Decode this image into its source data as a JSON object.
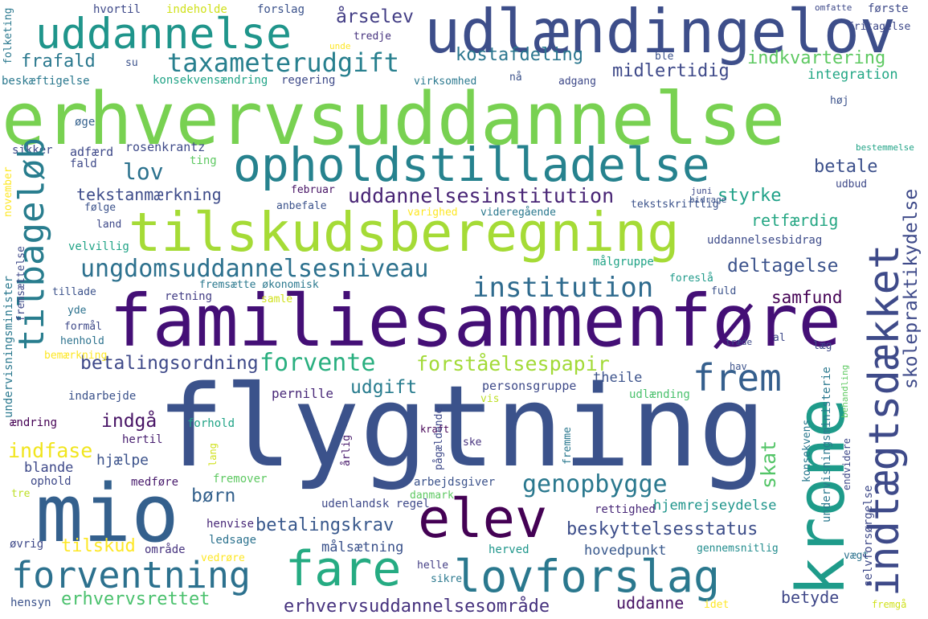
{
  "words": [
    {
      "t": "erhvervsuddannelse",
      "c": "#78d151"
    },
    {
      "t": "flygtning",
      "c": "#3b528b"
    },
    {
      "t": "familiesammenføre",
      "c": "#440f76"
    },
    {
      "t": "mio",
      "c": "#34608d"
    },
    {
      "t": "udlændingelov",
      "c": "#3d4e8a"
    },
    {
      "t": "tilskudsberegning",
      "c": "#a5db36"
    },
    {
      "t": "opholdstilladelse",
      "c": "#26828e"
    },
    {
      "t": "uddannelse",
      "c": "#1f958b"
    },
    {
      "t": "elev",
      "c": "#440154"
    },
    {
      "t": "krone",
      "c": "#1e9b8a"
    },
    {
      "t": "fare",
      "c": "#25ab82"
    },
    {
      "t": "lovforslag",
      "c": "#2a788e"
    },
    {
      "t": "indtægtsdækket",
      "c": "#3e4a89"
    },
    {
      "t": "forventning",
      "c": "#2c718e"
    },
    {
      "t": "frem",
      "c": "#355f8d"
    },
    {
      "t": "tilbageløb",
      "c": "#287d8e"
    },
    {
      "t": "taxameterudgift",
      "c": "#277f8e"
    },
    {
      "t": "ungdomsuddannelsesniveau",
      "c": "#2d718e"
    },
    {
      "t": "institution",
      "c": "#2f6b8e"
    },
    {
      "t": "uddannelsesinstitution",
      "c": "#482475"
    },
    {
      "t": "forvente",
      "c": "#29af7f"
    },
    {
      "t": "forståelsespapir",
      "c": "#a2da37"
    },
    {
      "t": "genopbygge",
      "c": "#2a788e"
    },
    {
      "t": "betalingsordning",
      "c": "#3e4989"
    },
    {
      "t": "erhvervsrettet",
      "c": "#4ac16d"
    },
    {
      "t": "erhvervsuddannelsesområde",
      "c": "#46327e"
    },
    {
      "t": "beskyttelsesstatus",
      "c": "#3d4e8a"
    },
    {
      "t": "betalingskrav",
      "c": "#38588c"
    },
    {
      "t": "skolepraktikydelse",
      "c": "#3e4a89"
    },
    {
      "t": "tekstanmærkning",
      "c": "#3e4c8a"
    },
    {
      "t": "deltagelse",
      "c": "#3b528b"
    },
    {
      "t": "samfund",
      "c": "#440154"
    },
    {
      "t": "retfærdig",
      "c": "#26a784"
    },
    {
      "t": "styrke",
      "c": "#1fa188"
    },
    {
      "t": "betale",
      "c": "#3c508b"
    },
    {
      "t": "midlertidig",
      "c": "#3e4989"
    },
    {
      "t": "kostafdeling",
      "c": "#2a768e"
    },
    {
      "t": "indkvartering",
      "c": "#5ec962"
    },
    {
      "t": "integration",
      "c": "#22a785"
    },
    {
      "t": "frafald",
      "c": "#2a788e"
    },
    {
      "t": "lov",
      "c": "#2c728e"
    },
    {
      "t": "årselev",
      "c": "#433e85"
    },
    {
      "t": "udgift",
      "c": "#287c8e"
    },
    {
      "t": "indgå",
      "c": "#471365"
    },
    {
      "t": "indfase",
      "c": "#f1e51d"
    },
    {
      "t": "tilskud",
      "c": "#fde725"
    },
    {
      "t": "børn",
      "c": "#34618d"
    },
    {
      "t": "skat",
      "c": "#54c568"
    },
    {
      "t": "betyde",
      "c": "#3f4788"
    },
    {
      "t": "uddanne",
      "c": "#471365"
    },
    {
      "t": "udlænding",
      "c": "#4ac16d"
    },
    {
      "t": "hjemrejseydelse",
      "c": "#1f958b"
    },
    {
      "t": "hovedpunkt",
      "c": "#38588c"
    },
    {
      "t": "målsætning",
      "c": "#3b528b"
    },
    {
      "t": "personsgruppe",
      "c": "#3e4a89"
    },
    {
      "t": "theile",
      "c": "#3b528b"
    },
    {
      "t": "pernille",
      "c": "#482878"
    },
    {
      "t": "hjælpe",
      "c": "#3b528b"
    },
    {
      "t": "blande",
      "c": "#3e4989"
    },
    {
      "t": "ophold",
      "c": "#3e4989"
    },
    {
      "t": "hertil",
      "c": "#481f70"
    },
    {
      "t": "henvise",
      "c": "#482878"
    },
    {
      "t": "ledsage",
      "c": "#2c728e"
    },
    {
      "t": "medføre",
      "c": "#481a6c"
    },
    {
      "t": "fremover",
      "c": "#5ec962"
    },
    {
      "t": "område",
      "c": "#46337f"
    },
    {
      "t": "udenlandsk regel",
      "c": "#3e4989"
    },
    {
      "t": "arbejdsgiver",
      "c": "#3b528b"
    },
    {
      "t": "danmark",
      "c": "#5ec962"
    },
    {
      "t": "rettighed",
      "c": "#482878"
    },
    {
      "t": "herved",
      "c": "#1f968b"
    },
    {
      "t": "helle",
      "c": "#433e85"
    },
    {
      "t": "sikre",
      "c": "#2a788e"
    },
    {
      "t": "vedrøre",
      "c": "#fde725"
    },
    {
      "t": "øvrig",
      "c": "#3e4989"
    },
    {
      "t": "hensyn",
      "c": "#3b528b"
    },
    {
      "t": "tre",
      "c": "#bddf26"
    },
    {
      "t": "gennemsnitlig",
      "c": "#228c8d"
    },
    {
      "t": "vægt",
      "c": "#2c728e"
    },
    {
      "t": "idet",
      "c": "#fde725"
    },
    {
      "t": "fremgå",
      "c": "#d0e11c"
    },
    {
      "t": "adfærd",
      "c": "#3e4989"
    },
    {
      "t": "fald",
      "c": "#3e4989"
    },
    {
      "t": "sikker",
      "c": "#3e4989"
    },
    {
      "t": "øge",
      "c": "#34618d"
    },
    {
      "t": "rosenkrantz",
      "c": "#3e4a89"
    },
    {
      "t": "ting",
      "c": "#5ec962"
    },
    {
      "t": "februar",
      "c": "#471365"
    },
    {
      "t": "anbefale",
      "c": "#3b528b"
    },
    {
      "t": "varighed",
      "c": "#fde725"
    },
    {
      "t": "videregående",
      "c": "#2a788e"
    },
    {
      "t": "tekstskriftlig",
      "c": "#3b528b"
    },
    {
      "t": "juni",
      "c": "#3e4989"
    },
    {
      "t": "bidrage",
      "c": "#3b528b"
    },
    {
      "t": "udbud",
      "c": "#3e4989"
    },
    {
      "t": "uddannelsesbidrag",
      "c": "#3e4c8a"
    },
    {
      "t": "målgruppe",
      "c": "#20a386"
    },
    {
      "t": "fremsætte økonomisk",
      "c": "#2a788e"
    },
    {
      "t": "samle",
      "c": "#d0e11c"
    },
    {
      "t": "retning",
      "c": "#433e85"
    },
    {
      "t": "foreslå",
      "c": "#1f9a8a"
    },
    {
      "t": "fuld",
      "c": "#3b528b"
    },
    {
      "t": "forhold",
      "c": "#20a386"
    },
    {
      "t": "kraft",
      "c": "#440154"
    },
    {
      "t": "vis",
      "c": "#bddf26"
    },
    {
      "t": "ske",
      "c": "#46327e"
    },
    {
      "t": "hvortil",
      "c": "#3e4989"
    },
    {
      "t": "indeholde",
      "c": "#d0e11c"
    },
    {
      "t": "forslag",
      "c": "#3b528b"
    },
    {
      "t": "tredje",
      "c": "#46327e"
    },
    {
      "t": "unde",
      "c": "#fde725"
    },
    {
      "t": "su",
      "c": "#3b528b"
    },
    {
      "t": "konsekvensændring",
      "c": "#20a386"
    },
    {
      "t": "regering",
      "c": "#3e4a89"
    },
    {
      "t": "virksomhed",
      "c": "#2a788e"
    },
    {
      "t": "nå",
      "c": "#3b528b"
    },
    {
      "t": "adgang",
      "c": "#3e4989"
    },
    {
      "t": "ble",
      "c": "#3b528b"
    },
    {
      "t": "høj",
      "c": "#3b528b"
    },
    {
      "t": "omfatte",
      "c": "#3e4989"
    },
    {
      "t": "første",
      "c": "#3e4a89"
    },
    {
      "t": "fritagelse",
      "c": "#3e4989"
    },
    {
      "t": "beskæftigelse",
      "c": "#2a788e"
    },
    {
      "t": "bestemmelse",
      "c": "#20a386"
    },
    {
      "t": "følge",
      "c": "#3b528b"
    },
    {
      "t": "land",
      "c": "#3e4989"
    },
    {
      "t": "velvillig",
      "c": "#20a386"
    },
    {
      "t": "tillade",
      "c": "#3b528b"
    },
    {
      "t": "yde",
      "c": "#2c728e"
    },
    {
      "t": "formål",
      "c": "#3e4989"
    },
    {
      "t": "henhold",
      "c": "#2c728e"
    },
    {
      "t": "bemærkning",
      "c": "#fde725"
    },
    {
      "t": "indarbejde",
      "c": "#3b528b"
    },
    {
      "t": "ændring",
      "c": "#440154"
    },
    {
      "t": "hav",
      "c": "#3b528b"
    },
    {
      "t": "al",
      "c": "#3e4989"
    },
    {
      "t": "træde",
      "c": "#3e4989"
    },
    {
      "t": "læg",
      "c": "#3e4989"
    },
    {
      "t": "folketing",
      "c": "#2a788e"
    },
    {
      "t": "november",
      "c": "#fde725"
    },
    {
      "t": "undervisningsminister",
      "c": "#2a788e"
    },
    {
      "t": "fremsættelse",
      "c": "#3e4989"
    },
    {
      "t": "lang",
      "c": "#d0e11c"
    },
    {
      "t": "årlig",
      "c": "#481a6c"
    },
    {
      "t": "pågældende",
      "c": "#3e4989"
    },
    {
      "t": "fremme",
      "c": "#2a788e"
    },
    {
      "t": "konsekvens",
      "c": "#2a788e"
    },
    {
      "t": "undervisningsministerie",
      "c": "#2a788e"
    },
    {
      "t": "endvidere",
      "c": "#3e4989"
    },
    {
      "t": "behandling",
      "c": "#5ec962"
    },
    {
      "t": "selvforsørgelse",
      "c": "#3e4989"
    }
  ]
}
